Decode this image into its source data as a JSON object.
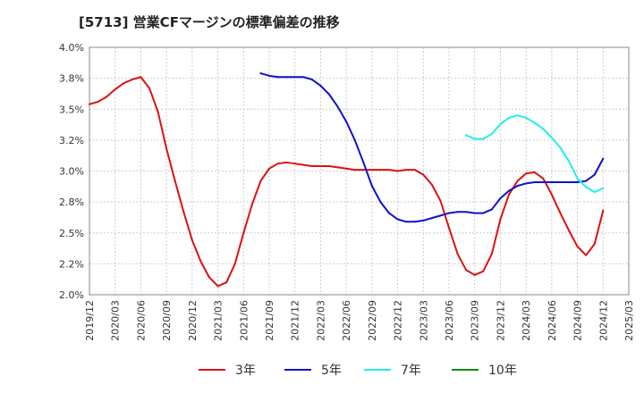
{
  "chart_data": {
    "type": "line",
    "title": "[5713]  営業CFマージンの標準偏差の推移",
    "xlabel": "",
    "ylabel": "",
    "ylim": [
      2.0,
      4.0
    ],
    "y_ticks": [
      "2.0%",
      "2.2%",
      "2.5%",
      "2.8%",
      "3.0%",
      "3.2%",
      "3.5%",
      "3.8%",
      "4.0%"
    ],
    "x_ticks": [
      "2019/12",
      "2020/03",
      "2020/06",
      "2020/09",
      "2020/12",
      "2021/03",
      "2021/06",
      "2021/09",
      "2021/12",
      "2022/03",
      "2022/06",
      "2022/09",
      "2022/12",
      "2023/03",
      "2023/06",
      "2023/09",
      "2023/12",
      "2024/03",
      "2024/06",
      "2024/09",
      "2024/12",
      "2025/03"
    ],
    "grid": true,
    "legend_position": "bottom",
    "series": [
      {
        "name": "3年",
        "color": "#dd1111",
        "points": [
          [
            "2019/12",
            3.54
          ],
          [
            "2020/01",
            3.56
          ],
          [
            "2020/02",
            3.6
          ],
          [
            "2020/03",
            3.66
          ],
          [
            "2020/04",
            3.71
          ],
          [
            "2020/05",
            3.74
          ],
          [
            "2020/06",
            3.76
          ],
          [
            "2020/07",
            3.67
          ],
          [
            "2020/08",
            3.48
          ],
          [
            "2020/09",
            3.18
          ],
          [
            "2020/10",
            2.92
          ],
          [
            "2020/11",
            2.67
          ],
          [
            "2020/12",
            2.44
          ],
          [
            "2021/01",
            2.27
          ],
          [
            "2021/02",
            2.14
          ],
          [
            "2021/03",
            2.07
          ],
          [
            "2021/04",
            2.1
          ],
          [
            "2021/05",
            2.25
          ],
          [
            "2021/06",
            2.5
          ],
          [
            "2021/07",
            2.73
          ],
          [
            "2021/08",
            2.92
          ],
          [
            "2021/09",
            3.02
          ],
          [
            "2021/10",
            3.06
          ],
          [
            "2021/11",
            3.07
          ],
          [
            "2021/12",
            3.06
          ],
          [
            "2022/01",
            3.05
          ],
          [
            "2022/02",
            3.04
          ],
          [
            "2022/03",
            3.04
          ],
          [
            "2022/04",
            3.04
          ],
          [
            "2022/05",
            3.03
          ],
          [
            "2022/06",
            3.02
          ],
          [
            "2022/07",
            3.01
          ],
          [
            "2022/08",
            3.01
          ],
          [
            "2022/09",
            3.01
          ],
          [
            "2022/10",
            3.01
          ],
          [
            "2022/11",
            3.01
          ],
          [
            "2022/12",
            3.0
          ],
          [
            "2023/01",
            3.01
          ],
          [
            "2023/02",
            3.01
          ],
          [
            "2023/03",
            2.97
          ],
          [
            "2023/04",
            2.89
          ],
          [
            "2023/05",
            2.76
          ],
          [
            "2023/06",
            2.54
          ],
          [
            "2023/07",
            2.33
          ],
          [
            "2023/08",
            2.2
          ],
          [
            "2023/09",
            2.16
          ],
          [
            "2023/10",
            2.19
          ],
          [
            "2023/11",
            2.33
          ],
          [
            "2023/12",
            2.61
          ],
          [
            "2024/01",
            2.81
          ],
          [
            "2024/02",
            2.92
          ],
          [
            "2024/03",
            2.98
          ],
          [
            "2024/04",
            2.99
          ],
          [
            "2024/05",
            2.94
          ],
          [
            "2024/06",
            2.81
          ],
          [
            "2024/07",
            2.66
          ],
          [
            "2024/08",
            2.52
          ],
          [
            "2024/09",
            2.39
          ],
          [
            "2024/10",
            2.32
          ],
          [
            "2024/11",
            2.41
          ],
          [
            "2024/12",
            2.68
          ]
        ]
      },
      {
        "name": "5年",
        "color": "#1111cc",
        "points": [
          [
            "2021/08",
            3.79
          ],
          [
            "2021/09",
            3.77
          ],
          [
            "2021/10",
            3.76
          ],
          [
            "2021/11",
            3.76
          ],
          [
            "2021/12",
            3.76
          ],
          [
            "2022/01",
            3.76
          ],
          [
            "2022/02",
            3.74
          ],
          [
            "2022/03",
            3.69
          ],
          [
            "2022/04",
            3.62
          ],
          [
            "2022/05",
            3.52
          ],
          [
            "2022/06",
            3.4
          ],
          [
            "2022/07",
            3.25
          ],
          [
            "2022/08",
            3.07
          ],
          [
            "2022/09",
            2.88
          ],
          [
            "2022/10",
            2.75
          ],
          [
            "2022/11",
            2.66
          ],
          [
            "2022/12",
            2.61
          ],
          [
            "2023/01",
            2.59
          ],
          [
            "2023/02",
            2.59
          ],
          [
            "2023/03",
            2.6
          ],
          [
            "2023/04",
            2.62
          ],
          [
            "2023/05",
            2.64
          ],
          [
            "2023/06",
            2.66
          ],
          [
            "2023/07",
            2.67
          ],
          [
            "2023/08",
            2.67
          ],
          [
            "2023/09",
            2.66
          ],
          [
            "2023/10",
            2.66
          ],
          [
            "2023/11",
            2.69
          ],
          [
            "2023/12",
            2.78
          ],
          [
            "2024/01",
            2.84
          ],
          [
            "2024/02",
            2.88
          ],
          [
            "2024/03",
            2.9
          ],
          [
            "2024/04",
            2.91
          ],
          [
            "2024/05",
            2.91
          ],
          [
            "2024/06",
            2.91
          ],
          [
            "2024/07",
            2.91
          ],
          [
            "2024/08",
            2.91
          ],
          [
            "2024/09",
            2.91
          ],
          [
            "2024/10",
            2.92
          ],
          [
            "2024/11",
            2.97
          ],
          [
            "2024/12",
            3.1
          ]
        ]
      },
      {
        "name": "7年",
        "color": "#22eeee",
        "points": [
          [
            "2023/08",
            3.29
          ],
          [
            "2023/09",
            3.26
          ],
          [
            "2023/10",
            3.26
          ],
          [
            "2023/11",
            3.3
          ],
          [
            "2023/12",
            3.38
          ],
          [
            "2024/01",
            3.43
          ],
          [
            "2024/02",
            3.45
          ],
          [
            "2024/03",
            3.43
          ],
          [
            "2024/04",
            3.39
          ],
          [
            "2024/05",
            3.34
          ],
          [
            "2024/06",
            3.27
          ],
          [
            "2024/07",
            3.19
          ],
          [
            "2024/08",
            3.08
          ],
          [
            "2024/09",
            2.94
          ],
          [
            "2024/10",
            2.87
          ],
          [
            "2024/11",
            2.83
          ],
          [
            "2024/12",
            2.86
          ]
        ]
      },
      {
        "name": "10年",
        "color": "#118811",
        "points": []
      }
    ]
  }
}
